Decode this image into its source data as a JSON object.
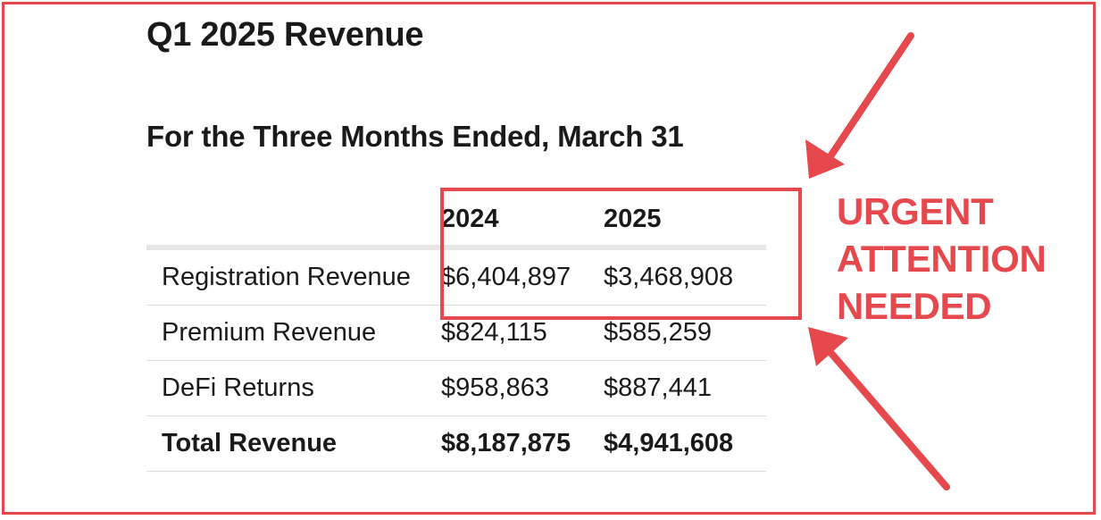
{
  "document": {
    "title": "Q1 2025 Revenue",
    "subtitle": "For the Three Months Ended, March 31"
  },
  "table": {
    "columns": [
      "",
      "2024",
      "2025"
    ],
    "rows": [
      {
        "label": "Registration Revenue",
        "y2024": "$6,404,897",
        "y2025": "$3,468,908"
      },
      {
        "label": "Premium Revenue",
        "y2024": "$824,115",
        "y2025": "$585,259"
      },
      {
        "label": "DeFi Returns",
        "y2024": "$958,863",
        "y2025": "$887,441"
      },
      {
        "label": "Total Revenue",
        "y2024": "$8,187,875",
        "y2025": "$4,941,608"
      }
    ]
  },
  "annotation": {
    "lines": [
      "URGENT",
      "ATTENTION",
      "NEEDED"
    ],
    "color": "#e5484d",
    "arrows": [
      "arrow-icon",
      "arrow-icon"
    ]
  }
}
